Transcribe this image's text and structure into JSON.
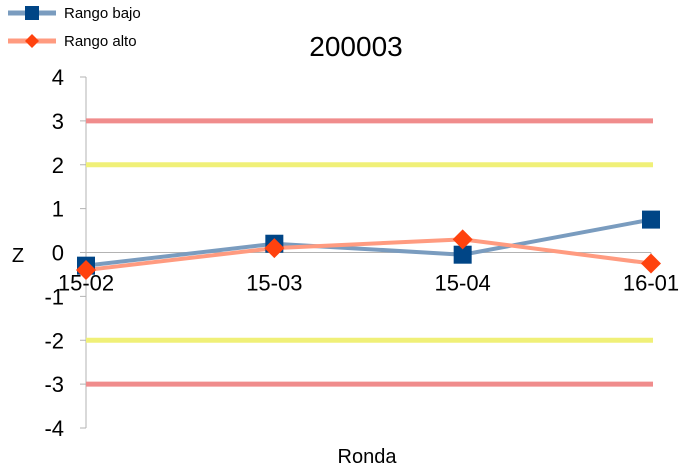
{
  "chart_data": {
    "type": "line",
    "title": "200003",
    "xlabel": "Ronda",
    "ylabel": "Z",
    "categories": [
      "15-02",
      "15-03",
      "15-04",
      "16-01"
    ],
    "ylim": [
      -4,
      4
    ],
    "yticks": [
      4,
      3,
      2,
      1,
      0,
      -1,
      -2,
      -3,
      -4
    ],
    "legend_position": "top-left",
    "series": [
      {
        "name": "Rango bajo",
        "values": [
          -0.3,
          0.2,
          -0.05,
          0.75
        ],
        "color": "#004586",
        "line_color": "#7a9cbf",
        "marker": "square"
      },
      {
        "name": "Rango alto",
        "values": [
          -0.4,
          0.1,
          0.3,
          -0.25
        ],
        "color": "#ff420e",
        "line_color": "#ff9b80",
        "marker": "diamond"
      }
    ],
    "reference_lines": [
      {
        "value": 3,
        "color": "#f08c8c"
      },
      {
        "value": 2,
        "color": "#f0f078"
      },
      {
        "value": -2,
        "color": "#f0f078"
      },
      {
        "value": -3,
        "color": "#f08c8c"
      }
    ]
  }
}
